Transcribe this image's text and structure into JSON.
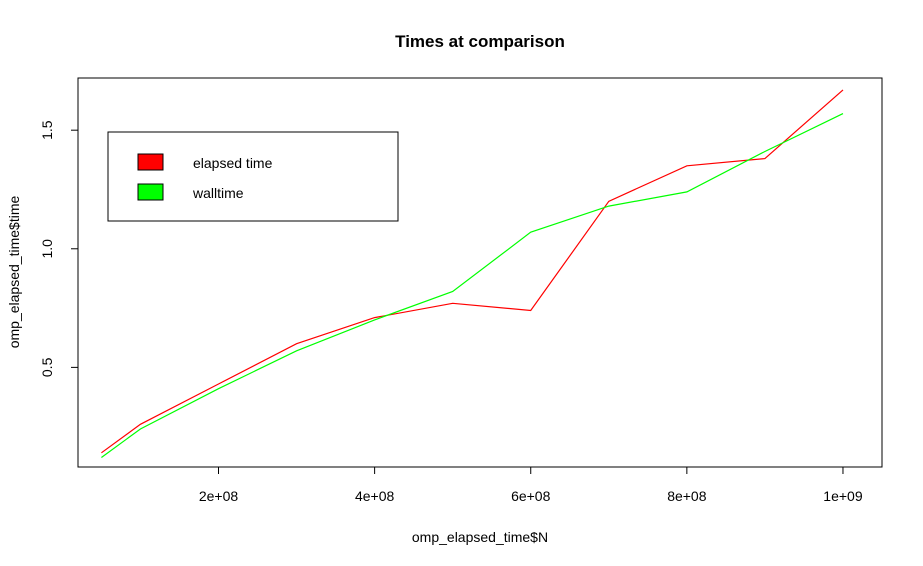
{
  "chart_data": {
    "type": "line",
    "title": "Times at comparison",
    "xlabel": "omp_elapsed_time$N",
    "ylabel": "omp_elapsed_time$time",
    "x": [
      50000000,
      100000000,
      200000000,
      300000000,
      400000000,
      500000000,
      600000000,
      700000000,
      800000000,
      900000000,
      1000000000
    ],
    "xlim": [
      20000000,
      1050000000
    ],
    "ylim": [
      0.08,
      1.72
    ],
    "x_ticks": [
      200000000,
      400000000,
      600000000,
      800000000,
      1000000000
    ],
    "x_tick_labels": [
      "2e+08",
      "4e+08",
      "6e+08",
      "8e+08",
      "1e+09"
    ],
    "y_ticks": [
      0.5,
      1.0,
      1.5
    ],
    "y_tick_labels": [
      "0.5",
      "1.0",
      "1.5"
    ],
    "grid": false,
    "legend_position": "top-left",
    "series": [
      {
        "name": "elapsed time",
        "color": "#ff0000",
        "values": [
          0.14,
          0.26,
          0.43,
          0.6,
          0.71,
          0.77,
          0.74,
          1.2,
          1.35,
          1.38,
          1.67
        ]
      },
      {
        "name": "walltime",
        "color": "#00ff00",
        "values": [
          0.12,
          0.24,
          0.41,
          0.57,
          0.7,
          0.82,
          1.07,
          1.18,
          1.24,
          1.41,
          1.57
        ]
      }
    ]
  }
}
